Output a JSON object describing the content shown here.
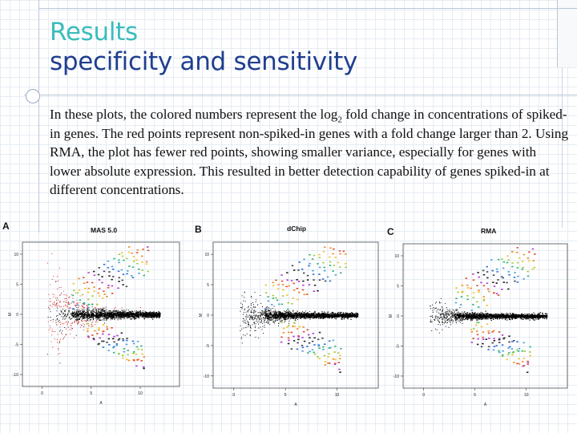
{
  "slide": {
    "title_line1": "Results",
    "title_line2": "specificity and sensitivity",
    "body_part1": "In these plots, the colored numbers represent the log",
    "body_sub": "2",
    "body_part2": " fold change in concentrations of spiked-in genes. The red points represent non-spiked-in genes with a fold change larger than 2. Using RMA, the plot has fewer red points, showing smaller variance, especially for genes with lower absolute expression. This resulted in better detection capability of genes spiked-in at different concentrations."
  },
  "chart_data": [
    {
      "type": "scatter",
      "panel": "A",
      "title": "MAS 5.0",
      "xlabel": "A",
      "ylabel": "M",
      "x_ticks": [
        "0",
        "5",
        "10"
      ],
      "y_ticks": [
        "10",
        "5",
        "0",
        "-5",
        "-10"
      ],
      "xlim": [
        -2,
        14
      ],
      "ylim": [
        -12,
        12
      ],
      "highlight_color": "#e03030"
    },
    {
      "type": "scatter",
      "panel": "B",
      "title": "dChip",
      "xlabel": "A",
      "ylabel": "M",
      "x_ticks": [
        "0",
        "5",
        "10"
      ],
      "y_ticks": [
        "10",
        "5",
        "0",
        "-5",
        "-10"
      ],
      "xlim": [
        -2,
        14
      ],
      "ylim": [
        -12,
        12
      ]
    },
    {
      "type": "scatter",
      "panel": "C",
      "title": "RMA",
      "xlabel": "A",
      "ylabel": "M",
      "x_ticks": [
        "0",
        "5",
        "10"
      ],
      "y_ticks": [
        "10",
        "5",
        "0",
        "-5",
        "-10"
      ],
      "xlim": [
        -2,
        14
      ],
      "ylim": [
        -12,
        12
      ]
    }
  ]
}
